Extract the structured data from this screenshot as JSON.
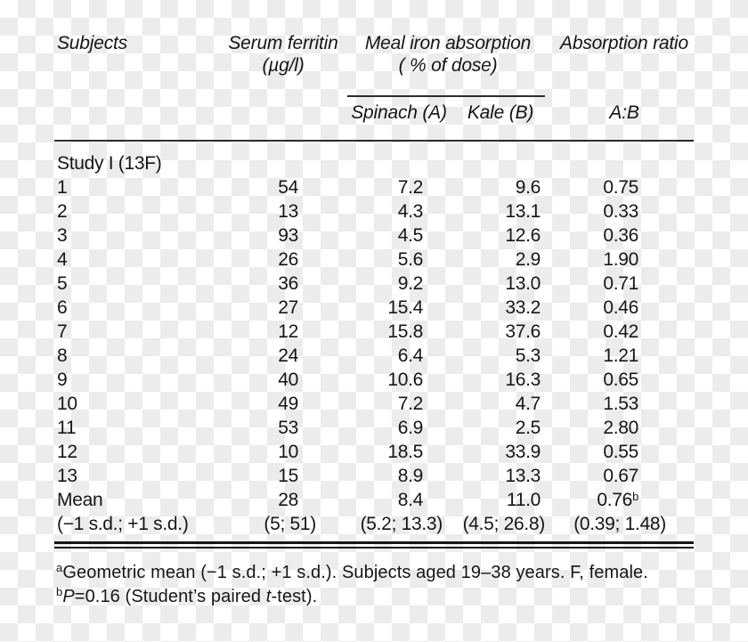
{
  "header": {
    "subjects": "Subjects",
    "serum_ferritin_1": "Serum ferritin",
    "serum_ferritin_2": "(µg/l)",
    "meal_iron_1": "Meal iron absorption",
    "meal_iron_2": "( % of dose)",
    "absorption_ratio": "Absorption ratio",
    "spinach": "Spinach (A)",
    "kale": "Kale (B)",
    "ratio": "A:B"
  },
  "group_label": "Study I (13F)",
  "rows": [
    {
      "subject": "1",
      "ferritin": "54",
      "spinach": "7.2",
      "kale": "9.6",
      "ratio": "0.75"
    },
    {
      "subject": "2",
      "ferritin": "13",
      "spinach": "4.3",
      "kale": "13.1",
      "ratio": "0.33"
    },
    {
      "subject": "3",
      "ferritin": "93",
      "spinach": "4.5",
      "kale": "12.6",
      "ratio": "0.36"
    },
    {
      "subject": "4",
      "ferritin": "26",
      "spinach": "5.6",
      "kale": "2.9",
      "ratio": "1.90"
    },
    {
      "subject": "5",
      "ferritin": "36",
      "spinach": "9.2",
      "kale": "13.0",
      "ratio": "0.71"
    },
    {
      "subject": "6",
      "ferritin": "27",
      "spinach": "15.4",
      "kale": "33.2",
      "ratio": "0.46"
    },
    {
      "subject": "7",
      "ferritin": "12",
      "spinach": "15.8",
      "kale": "37.6",
      "ratio": "0.42"
    },
    {
      "subject": "8",
      "ferritin": "24",
      "spinach": "6.4",
      "kale": "5.3",
      "ratio": "1.21"
    },
    {
      "subject": "9",
      "ferritin": "40",
      "spinach": "10.6",
      "kale": "16.3",
      "ratio": "0.65"
    },
    {
      "subject": "10",
      "ferritin": "49",
      "spinach": "7.2",
      "kale": "4.7",
      "ratio": "1.53"
    },
    {
      "subject": "11",
      "ferritin": "53",
      "spinach": "6.9",
      "kale": "2.5",
      "ratio": "2.80"
    },
    {
      "subject": "12",
      "ferritin": "10",
      "spinach": "18.5",
      "kale": "33.9",
      "ratio": "0.55"
    },
    {
      "subject": "13",
      "ferritin": "15",
      "spinach": "8.9",
      "kale": "13.3",
      "ratio": "0.67"
    }
  ],
  "mean_row": {
    "subject": "Mean",
    "ferritin": "28",
    "spinach": "8.4",
    "kale": "11.0",
    "ratio": "0.76",
    "ratio_sup": "b"
  },
  "sd_row": {
    "subject": "(−1 s.d.; +1 s.d.)",
    "ferritin": "(5; 51)",
    "spinach": "(5.2; 13.3)",
    "kale": "(4.5; 26.8)",
    "ratio": "(0.39; 1.48)"
  },
  "footnotes": {
    "a_sup": "a",
    "a_text": "Geometric mean (−1 s.d.; +1 s.d.). Subjects aged 19–38 years. F, female.",
    "b_sup": "b",
    "b_var": "P",
    "b_mid": "=0.16 (Student’s paired ",
    "b_var2": "t",
    "b_end": "-test)."
  },
  "colors": {
    "text": "#161616",
    "rule": "#2d2d2d",
    "checker_gray": "#ececec",
    "checker_white": "#ffffff"
  }
}
